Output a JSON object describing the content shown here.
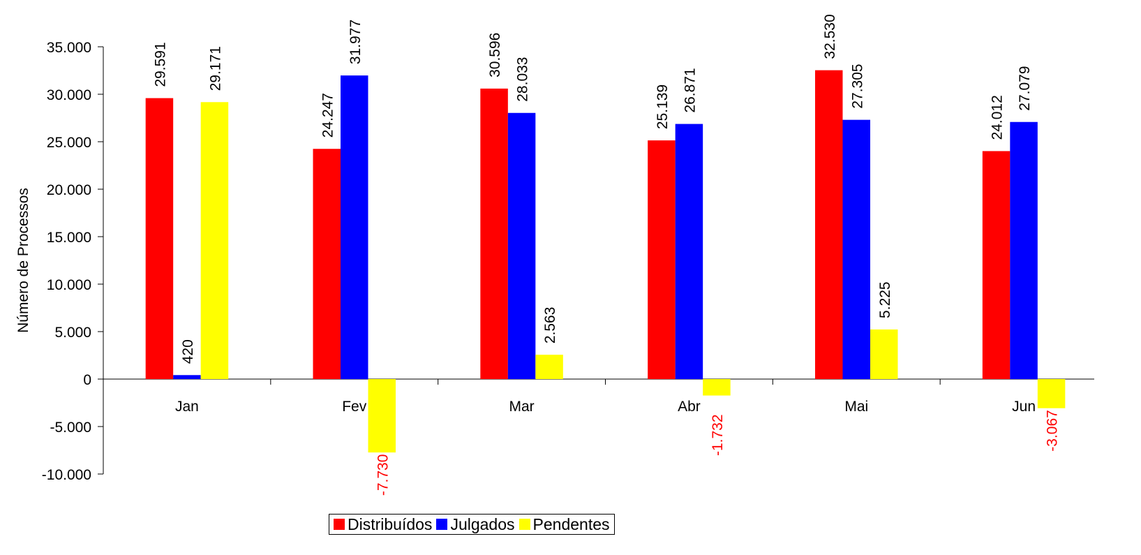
{
  "chart_data": {
    "type": "bar",
    "title": "",
    "xlabel": "",
    "ylabel": "Número de Processos",
    "ylim": [
      -10000,
      35000
    ],
    "ytick_step": 5000,
    "yticks": [
      "-10.000",
      "-5.000",
      "0",
      "5.000",
      "10.000",
      "15.000",
      "20.000",
      "25.000",
      "30.000",
      "35.000"
    ],
    "categories": [
      "Jan",
      "Fev",
      "Mar",
      "Abr",
      "Mai",
      "Jun"
    ],
    "series": [
      {
        "name": "Distribuídos",
        "color": "#ff0000",
        "values": [
          29591,
          24247,
          30596,
          25139,
          32530,
          24012
        ],
        "labels": [
          "29.591",
          "24.247",
          "30.596",
          "25.139",
          "32.530",
          "24.012"
        ]
      },
      {
        "name": "Julgados",
        "color": "#0000ff",
        "values": [
          420,
          31977,
          28033,
          26871,
          27305,
          27079
        ],
        "labels": [
          "420",
          "31.977",
          "28.033",
          "26.871",
          "27.305",
          "27.079"
        ]
      },
      {
        "name": "Pendentes",
        "color": "#ffff00",
        "values": [
          29171,
          -7730,
          2563,
          -1732,
          5225,
          -3067
        ],
        "labels": [
          "29.171",
          "-7.730",
          "2.563",
          "-1.732",
          "5.225",
          "-3.067"
        ]
      }
    ],
    "negative_label_color": "#ff0000",
    "grid": false,
    "legend_position": "bottom"
  }
}
